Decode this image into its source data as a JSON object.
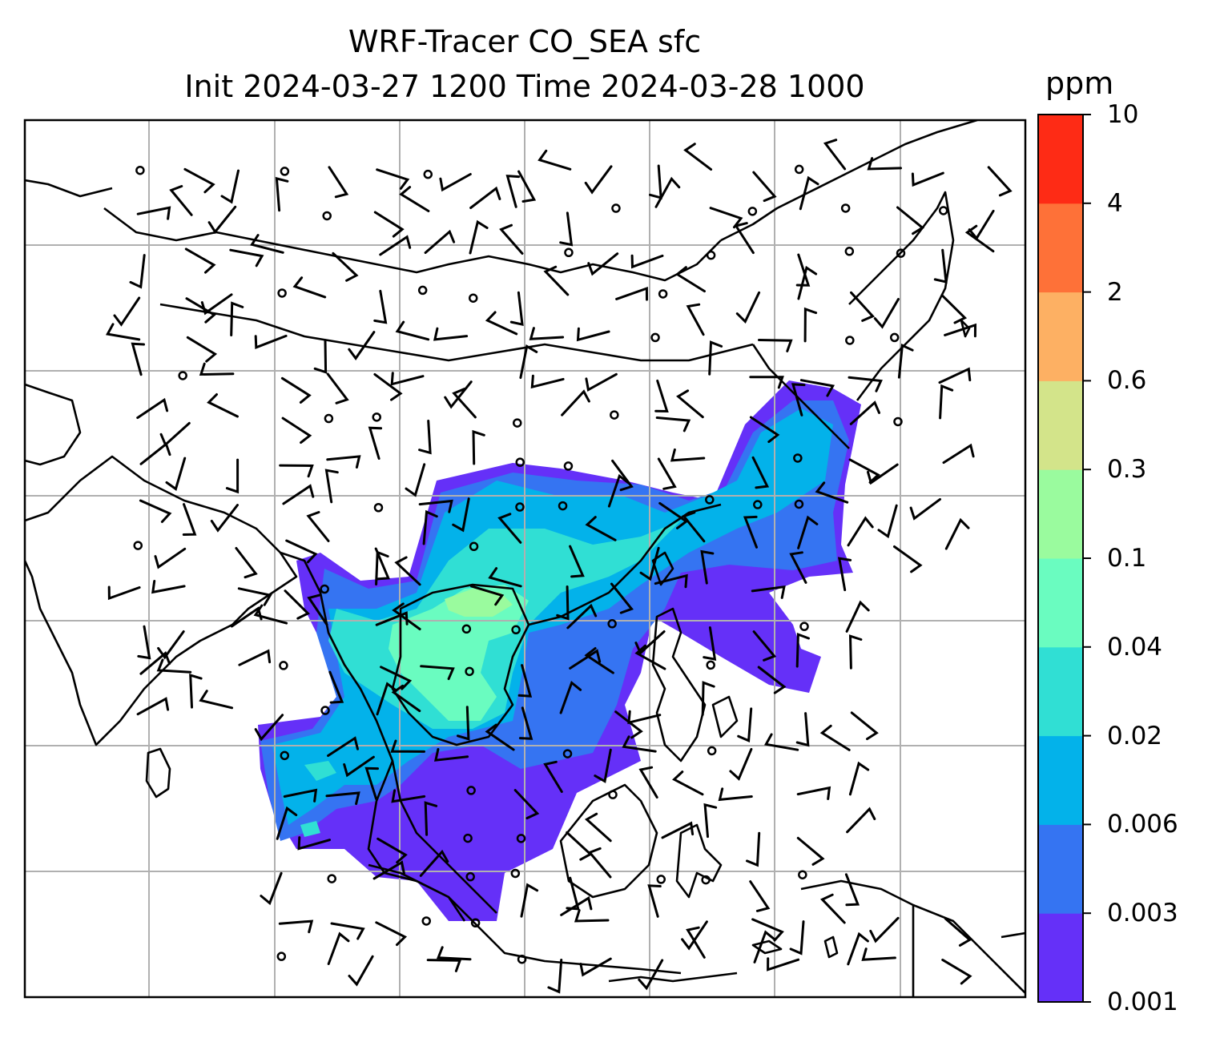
{
  "figure": {
    "title_line1": "WRF-Tracer CO_SEA sfc",
    "title_line2": "Init 2024-03-27 1200 Time 2024-03-28 1000"
  },
  "colorbar": {
    "unit": "ppm",
    "tick_labels": [
      "0.001",
      "0.003",
      "0.006",
      "0.02",
      "0.04",
      "0.1",
      "0.3",
      "0.6",
      "2",
      "4",
      "10"
    ],
    "band_colors": [
      "#6530f8",
      "#3574f2",
      "#03b2ea",
      "#30dfd4",
      "#6afcc0",
      "#9afb9e",
      "#d3e48a",
      "#fdb063",
      "#fe7138",
      "#fe2b15"
    ]
  },
  "map": {
    "projection": "lat-lon with gridlines",
    "gridlines": true,
    "overlay": "surface wind barbs",
    "coastline_color": "#000000",
    "gridline_color": "#b0b0b0"
  }
}
